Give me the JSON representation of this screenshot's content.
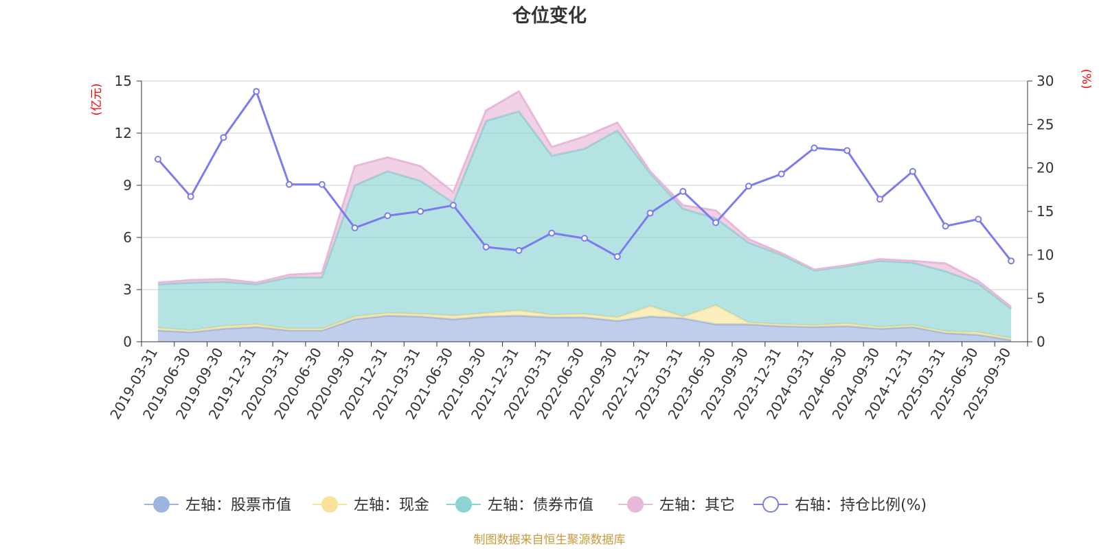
{
  "chart_data": {
    "type": "area",
    "title": "仓位变化",
    "left_unit": "(亿元)",
    "right_unit": "(%)",
    "ylim_left": [
      0,
      15
    ],
    "ylim_right": [
      0,
      30
    ],
    "yticks_left": [
      "0",
      "3",
      "6",
      "9",
      "12",
      "15"
    ],
    "yticks_right": [
      "0",
      "5",
      "10",
      "15",
      "20",
      "25",
      "30"
    ],
    "categories": [
      "2019-03-31",
      "2019-06-30",
      "2019-09-30",
      "2019-12-31",
      "2020-03-31",
      "2020-06-30",
      "2020-09-30",
      "2020-12-31",
      "2021-03-31",
      "2021-06-30",
      "2021-09-30",
      "2021-12-31",
      "2022-03-31",
      "2022-06-30",
      "2022-09-30",
      "2022-12-31",
      "2023-03-31",
      "2023-06-30",
      "2023-09-30",
      "2023-12-31",
      "2024-03-31",
      "2024-06-30",
      "2024-09-30",
      "2024-12-31",
      "2025-03-31",
      "2025-06-30",
      "2025-09-30"
    ],
    "stacked_series": [
      {
        "name": "左轴：股票市值",
        "color": "#9db4e0",
        "values": [
          0.65,
          0.55,
          0.75,
          0.85,
          0.65,
          0.65,
          1.3,
          1.5,
          1.45,
          1.3,
          1.45,
          1.5,
          1.4,
          1.4,
          1.2,
          1.45,
          1.35,
          1.0,
          1.0,
          0.9,
          0.85,
          0.9,
          0.75,
          0.85,
          0.5,
          0.4,
          0.1
        ]
      },
      {
        "name": "左轴：现金",
        "color": "#f7e39b",
        "values": [
          0.15,
          0.1,
          0.15,
          0.15,
          0.1,
          0.1,
          0.15,
          0.15,
          0.15,
          0.2,
          0.2,
          0.3,
          0.15,
          0.2,
          0.2,
          0.6,
          0.1,
          1.1,
          0.1,
          0.1,
          0.1,
          0.15,
          0.1,
          0.1,
          0.1,
          0.15,
          0.1
        ]
      },
      {
        "name": "左轴：债券市值",
        "color": "#8dd3d3",
        "values": [
          2.5,
          2.75,
          2.55,
          2.3,
          2.95,
          2.95,
          7.55,
          8.15,
          7.65,
          6.5,
          11.05,
          11.45,
          9.15,
          9.5,
          10.75,
          7.65,
          6.2,
          5.0,
          4.6,
          4.0,
          3.15,
          3.3,
          3.8,
          3.6,
          3.45,
          2.8,
          1.7
        ]
      },
      {
        "name": "左轴：其它",
        "color": "#e8b8d8",
        "values": [
          0.1,
          0.15,
          0.15,
          0.1,
          0.15,
          0.25,
          1.1,
          0.8,
          0.85,
          0.6,
          0.6,
          1.15,
          0.5,
          0.7,
          0.45,
          0.1,
          0.2,
          0.45,
          0.2,
          0.1,
          0.05,
          0.05,
          0.1,
          0.1,
          0.45,
          0.15,
          0.1
        ]
      }
    ],
    "line_series": {
      "name": "右轴：持仓比例(%)",
      "color": "#7b7bef",
      "axis": "right",
      "values": [
        21.0,
        16.7,
        23.5,
        28.8,
        18.1,
        18.1,
        13.1,
        14.5,
        15.0,
        15.7,
        10.9,
        10.5,
        12.5,
        11.9,
        9.8,
        14.8,
        17.3,
        13.7,
        17.9,
        19.3,
        22.3,
        22.0,
        16.4,
        19.6,
        13.3,
        14.1,
        9.3
      ]
    },
    "legend": [
      "左轴：股票市值",
      "左轴：现金",
      "左轴：债券市值",
      "左轴：其它",
      "右轴：持仓比例(%)"
    ],
    "legend_position": "bottom",
    "grid": true
  },
  "footer": "制图数据来自恒生聚源数据库"
}
